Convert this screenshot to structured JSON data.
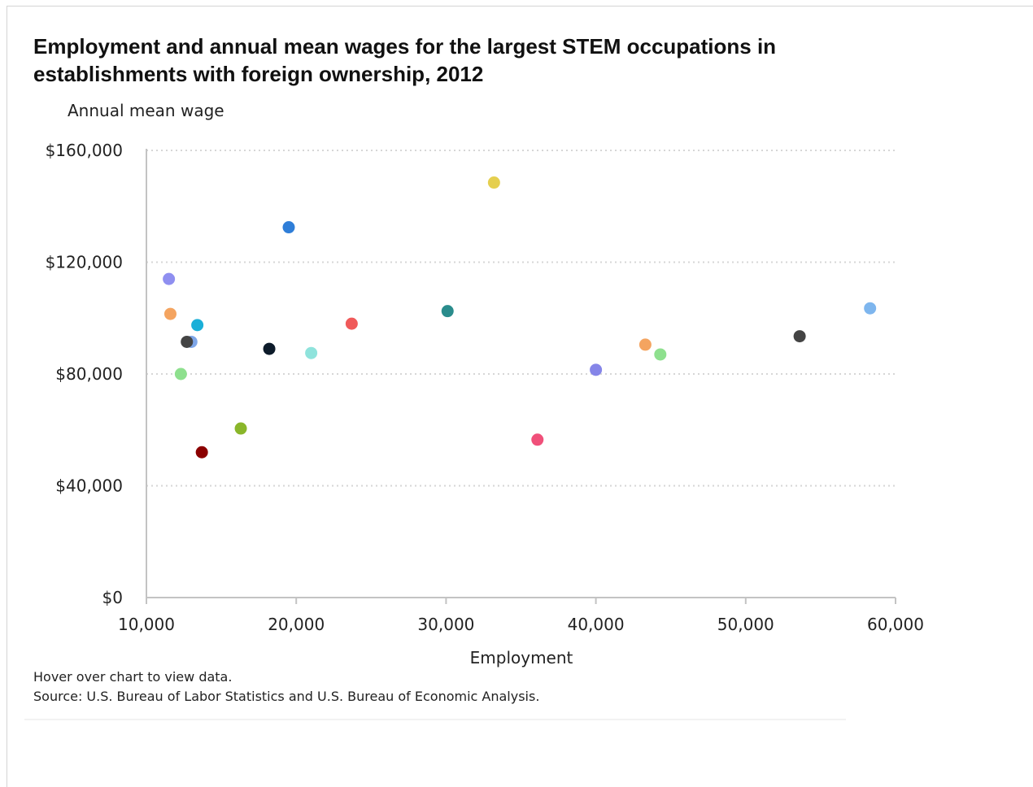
{
  "title": "Employment and annual mean wages for the largest STEM occupations in establishments with foreign ownership, 2012",
  "footnotes": {
    "hover": "Hover over chart to view data.",
    "source": "Source: U.S. Bureau of Labor Statistics and U.S. Bureau of Economic Analysis."
  },
  "chart_data": {
    "type": "scatter",
    "title": "Employment and annual mean wages for the largest STEM occupations in establishments with foreign ownership, 2012",
    "xlabel": "Employment",
    "ylabel": "Annual mean wage",
    "xlim": [
      10000,
      60000
    ],
    "ylim": [
      0,
      160000
    ],
    "xticks": [
      10000,
      20000,
      30000,
      40000,
      50000,
      60000
    ],
    "xtick_labels": [
      "10,000",
      "20,000",
      "30,000",
      "40,000",
      "50,000",
      "60,000"
    ],
    "yticks": [
      0,
      40000,
      80000,
      120000,
      160000
    ],
    "ytick_labels": [
      "$0",
      "$40,000",
      "$80,000",
      "$120,000",
      "$160,000"
    ],
    "grid": "horizontal dotted",
    "points": [
      {
        "x": 11500,
        "y": 114000,
        "color": "#8f8ff0"
      },
      {
        "x": 11600,
        "y": 101500,
        "color": "#f4a460"
      },
      {
        "x": 12300,
        "y": 80000,
        "color": "#8ee08e"
      },
      {
        "x": 13000,
        "y": 91500,
        "color": "#7ea6e8"
      },
      {
        "x": 12700,
        "y": 91500,
        "color": "#444444"
      },
      {
        "x": 13400,
        "y": 97500,
        "color": "#1bafd8"
      },
      {
        "x": 13700,
        "y": 52000,
        "color": "#8b0000"
      },
      {
        "x": 16300,
        "y": 60500,
        "color": "#8ab62a"
      },
      {
        "x": 18200,
        "y": 89000,
        "color": "#0d1b2a"
      },
      {
        "x": 19500,
        "y": 132500,
        "color": "#2f7ed8"
      },
      {
        "x": 21000,
        "y": 87500,
        "color": "#8fe3dc"
      },
      {
        "x": 23700,
        "y": 98000,
        "color": "#f05a5a"
      },
      {
        "x": 30100,
        "y": 102500,
        "color": "#2a8c8c"
      },
      {
        "x": 33200,
        "y": 148500,
        "color": "#e5cf4f"
      },
      {
        "x": 36100,
        "y": 56500,
        "color": "#f0507a"
      },
      {
        "x": 40000,
        "y": 81500,
        "color": "#8585e8"
      },
      {
        "x": 43300,
        "y": 90500,
        "color": "#f4a460"
      },
      {
        "x": 44300,
        "y": 87000,
        "color": "#8ee08e"
      },
      {
        "x": 53600,
        "y": 93500,
        "color": "#444444"
      },
      {
        "x": 58300,
        "y": 103500,
        "color": "#7eb6ee"
      }
    ]
  }
}
